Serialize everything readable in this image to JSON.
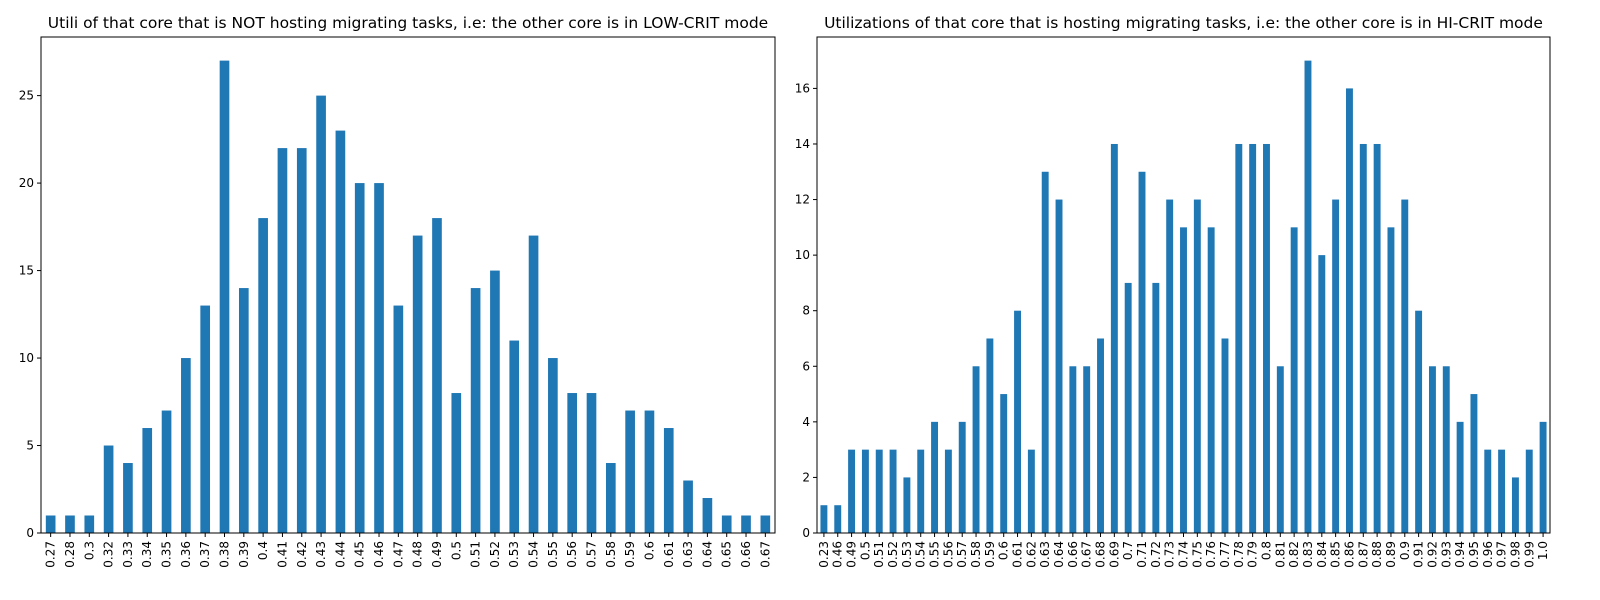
{
  "chart_data": [
    {
      "type": "bar",
      "title": "Utili of that core that is NOT hosting migrating tasks, i.e: the other core is in LOW-CRIT mode",
      "categories": [
        "0.27",
        "0.28",
        "0.3",
        "0.32",
        "0.33",
        "0.34",
        "0.35",
        "0.36",
        "0.37",
        "0.38",
        "0.39",
        "0.4",
        "0.41",
        "0.42",
        "0.43",
        "0.44",
        "0.45",
        "0.46",
        "0.47",
        "0.48",
        "0.49",
        "0.5",
        "0.51",
        "0.52",
        "0.53",
        "0.54",
        "0.55",
        "0.56",
        "0.57",
        "0.58",
        "0.59",
        "0.6",
        "0.61",
        "0.63",
        "0.64",
        "0.65",
        "0.66",
        "0.67"
      ],
      "values": [
        1,
        1,
        1,
        5,
        4,
        6,
        7,
        10,
        13,
        27,
        14,
        18,
        22,
        22,
        25,
        23,
        20,
        20,
        13,
        17,
        18,
        8,
        14,
        15,
        11,
        17,
        10,
        8,
        8,
        4,
        7,
        7,
        6,
        3,
        2,
        1,
        1,
        1
      ],
      "color": "#1f77b4",
      "ylim": [
        0,
        28.35
      ],
      "yticks": [
        0,
        5,
        10,
        15,
        20,
        25
      ]
    },
    {
      "type": "bar",
      "title": "Utilizations of that core that is hosting migrating tasks, i.e: the other core is in HI-CRIT mode",
      "categories": [
        "0.23",
        "0.46",
        "0.49",
        "0.5",
        "0.51",
        "0.52",
        "0.53",
        "0.54",
        "0.55",
        "0.56",
        "0.57",
        "0.58",
        "0.59",
        "0.6",
        "0.61",
        "0.62",
        "0.63",
        "0.64",
        "0.66",
        "0.67",
        "0.68",
        "0.69",
        "0.7",
        "0.71",
        "0.72",
        "0.73",
        "0.74",
        "0.75",
        "0.76",
        "0.77",
        "0.78",
        "0.79",
        "0.8",
        "0.81",
        "0.82",
        "0.83",
        "0.84",
        "0.85",
        "0.86",
        "0.87",
        "0.88",
        "0.89",
        "0.9",
        "0.91",
        "0.92",
        "0.93",
        "0.94",
        "0.95",
        "0.96",
        "0.97",
        "0.98",
        "0.99",
        "1.0"
      ],
      "values": [
        1,
        1,
        3,
        3,
        3,
        3,
        2,
        3,
        4,
        3,
        4,
        6,
        7,
        5,
        8,
        3,
        13,
        12,
        6,
        6,
        7,
        14,
        9,
        13,
        9,
        12,
        11,
        12,
        11,
        7,
        14,
        14,
        14,
        6,
        11,
        17,
        10,
        12,
        16,
        14,
        14,
        11,
        12,
        8,
        6,
        6,
        4,
        5,
        3,
        3,
        2,
        3,
        4
      ],
      "color": "#1f77b4",
      "ylim": [
        0,
        17.85
      ],
      "yticks": [
        0,
        2,
        4,
        6,
        8,
        10,
        12,
        14,
        16
      ]
    }
  ]
}
